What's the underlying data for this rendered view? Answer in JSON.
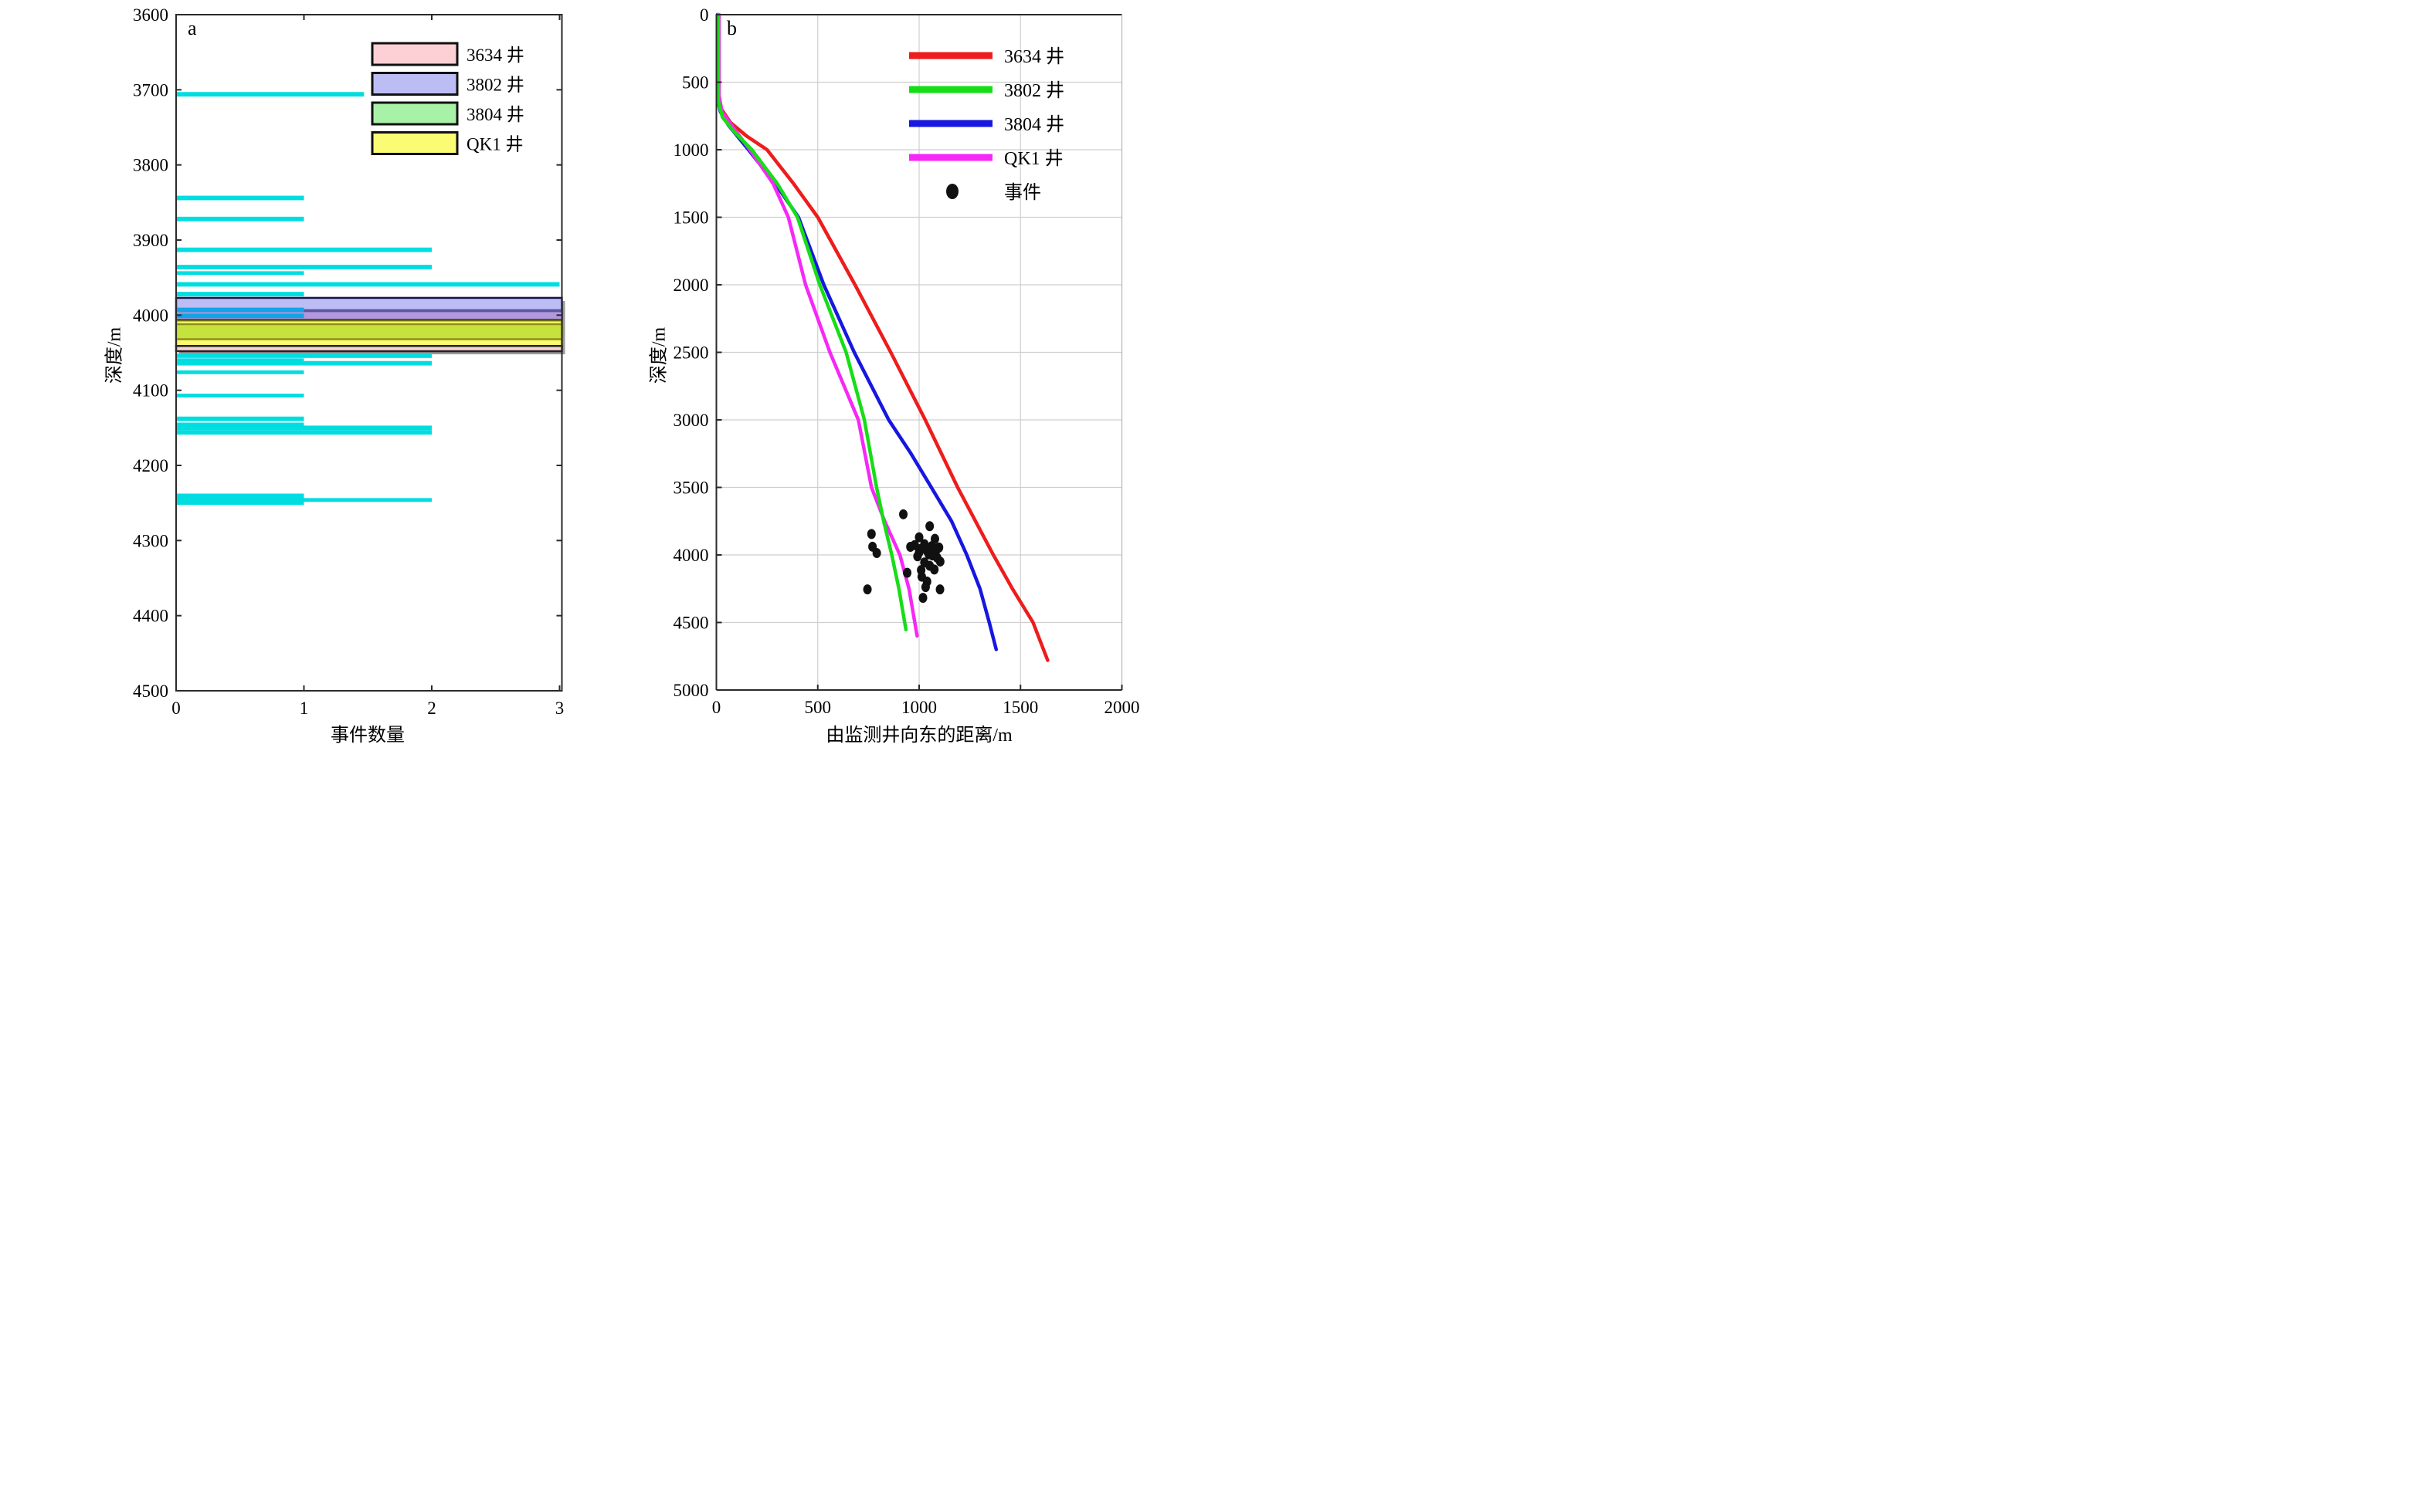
{
  "figure": {
    "panel_a_letter": "a",
    "panel_b_letter": "b"
  },
  "chart_data": [
    {
      "type": "bar",
      "orientation": "horizontal",
      "panel_label": "a",
      "xlabel": "事件数量",
      "ylabel": "深度/m",
      "x_range": [
        0,
        3
      ],
      "y_range": [
        3600,
        4500
      ],
      "x_ticks": [
        0,
        1,
        2,
        3
      ],
      "y_ticks": [
        3600,
        3700,
        3800,
        3900,
        4000,
        4100,
        4200,
        4300,
        4400,
        4500
      ],
      "grid": false,
      "colors": {
        "bar_cyan": "#00dde0",
        "bar_blue": "#14a3e6",
        "axis": "#2a2a2a",
        "band_shadow": "#9a9a9a"
      },
      "legend": [
        {
          "label": "3634 井",
          "fill": "#fcd0d4",
          "border": "#111111"
        },
        {
          "label": "3802 井",
          "fill": "#bdbdf5",
          "border": "#111111"
        },
        {
          "label": "3804 井",
          "fill": "#a8f2a8",
          "border": "#111111"
        },
        {
          "label": "QK1 井",
          "fill": "#fbfb74",
          "border": "#111111"
        }
      ],
      "bands": [
        {
          "well": "3802 井",
          "top": 3977,
          "bottom": 4006,
          "fill": "#bdbdf5",
          "border": "#15154a"
        },
        {
          "well": "3802 井 stripe",
          "top": 3992,
          "bottom": 3996,
          "fill": "#5c55a8",
          "border": null
        },
        {
          "well": "3802 井 lower",
          "top": 3996,
          "bottom": 4005,
          "fill": "#b399da",
          "border": null
        },
        {
          "well": "QK1 井",
          "top": 4007,
          "bottom": 4041,
          "fill": "#fafa6e",
          "border": "#6b6b10"
        },
        {
          "well": "3804 井 (overlap QK1)",
          "top": 4012,
          "bottom": 4032,
          "fill": "#c6e23c",
          "border": "#8e8e1c"
        },
        {
          "well": "3634 井",
          "top": 4041,
          "bottom": 4048,
          "fill": "#fcd0d4",
          "border": "#222222"
        }
      ],
      "bars": [
        {
          "depth": 3706,
          "height_m": 6,
          "value": 1.47,
          "color": "cyan"
        },
        {
          "depth": 3844,
          "height_m": 6,
          "value": 1,
          "color": "cyan"
        },
        {
          "depth": 3872,
          "height_m": 6,
          "value": 1,
          "color": "cyan"
        },
        {
          "depth": 3913,
          "height_m": 6,
          "value": 2,
          "color": "cyan"
        },
        {
          "depth": 3936,
          "height_m": 6,
          "value": 2,
          "color": "cyan"
        },
        {
          "depth": 3944,
          "height_m": 5,
          "value": 1,
          "color": "cyan"
        },
        {
          "depth": 3959,
          "height_m": 6,
          "value": 3,
          "color": "cyan"
        },
        {
          "depth": 3972,
          "height_m": 6,
          "value": 1,
          "color": "cyan"
        },
        {
          "depth": 3993,
          "height_m": 6,
          "value": 1,
          "color": "blue"
        },
        {
          "depth": 4001,
          "height_m": 6,
          "value": 1,
          "color": "blue"
        },
        {
          "depth": 4054,
          "height_m": 6,
          "value": 2,
          "color": "cyan"
        },
        {
          "depth": 4060,
          "height_m": 5,
          "value": 1,
          "color": "cyan"
        },
        {
          "depth": 4064,
          "height_m": 6,
          "value": 2,
          "color": "cyan"
        },
        {
          "depth": 4076,
          "height_m": 5,
          "value": 1,
          "color": "cyan"
        },
        {
          "depth": 4107,
          "height_m": 5,
          "value": 1,
          "color": "cyan"
        },
        {
          "depth": 4138,
          "height_m": 6,
          "value": 1,
          "color": "cyan"
        },
        {
          "depth": 4146,
          "height_m": 6,
          "value": 1,
          "color": "cyan"
        },
        {
          "depth": 4150,
          "height_m": 6,
          "value": 2,
          "color": "cyan"
        },
        {
          "depth": 4156,
          "height_m": 6,
          "value": 2,
          "color": "cyan"
        },
        {
          "depth": 4245,
          "height_m": 15,
          "value": 1,
          "color": "cyan"
        },
        {
          "depth": 4246,
          "height_m": 5,
          "value": 2,
          "color": "cyan"
        }
      ]
    },
    {
      "type": "line",
      "panel_label": "b",
      "xlabel": "由监测井向东的距离/m",
      "ylabel": "深度/m",
      "x_range": [
        0,
        2000
      ],
      "y_range": [
        0,
        5000
      ],
      "x_ticks": [
        0,
        500,
        1000,
        1500,
        2000
      ],
      "y_ticks": [
        0,
        500,
        1000,
        1500,
        2000,
        2500,
        3000,
        3500,
        4000,
        4500,
        5000
      ],
      "grid": true,
      "grid_color": "#cfcfcf",
      "axis_color": "#2a2a2a",
      "series": [
        {
          "name": "3634 井",
          "color": "#ee1c1c",
          "points": [
            [
              8,
              0
            ],
            [
              8,
              580
            ],
            [
              25,
              700
            ],
            [
              70,
              800
            ],
            [
              150,
              900
            ],
            [
              250,
              1000
            ],
            [
              380,
              1250
            ],
            [
              500,
              1500
            ],
            [
              684,
              2000
            ],
            [
              860,
              2500
            ],
            [
              1030,
              3000
            ],
            [
              1190,
              3500
            ],
            [
              1366,
              4000
            ],
            [
              1460,
              4250
            ],
            [
              1562,
              4500
            ],
            [
              1634,
              4780
            ]
          ]
        },
        {
          "name": "3802 井",
          "color": "#17dd17",
          "points": [
            [
              9,
              0
            ],
            [
              9,
              640
            ],
            [
              30,
              760
            ],
            [
              90,
              870
            ],
            [
              175,
              1000
            ],
            [
              300,
              1250
            ],
            [
              400,
              1500
            ],
            [
              510,
              2000
            ],
            [
              640,
              2500
            ],
            [
              730,
              3000
            ],
            [
              790,
              3500
            ],
            [
              825,
              3750
            ],
            [
              865,
              4000
            ],
            [
              900,
              4250
            ],
            [
              935,
              4553
            ]
          ]
        },
        {
          "name": "3804 井",
          "color": "#1717e0",
          "points": [
            [
              5,
              0
            ],
            [
              5,
              620
            ],
            [
              20,
              720
            ],
            [
              60,
              820
            ],
            [
              158,
              1000
            ],
            [
              290,
              1250
            ],
            [
              405,
              1500
            ],
            [
              530,
              2000
            ],
            [
              680,
              2500
            ],
            [
              850,
              3000
            ],
            [
              960,
              3250
            ],
            [
              1060,
              3500
            ],
            [
              1160,
              3750
            ],
            [
              1235,
              4000
            ],
            [
              1300,
              4250
            ],
            [
              1346,
              4500
            ],
            [
              1380,
              4700
            ]
          ]
        },
        {
          "name": "QK1 井",
          "color": "#f628f6",
          "points": [
            [
              13,
              0
            ],
            [
              13,
              600
            ],
            [
              28,
              720
            ],
            [
              80,
              830
            ],
            [
              165,
              1000
            ],
            [
              280,
              1250
            ],
            [
              355,
              1500
            ],
            [
              440,
              2000
            ],
            [
              560,
              2500
            ],
            [
              700,
              3000
            ],
            [
              765,
              3500
            ],
            [
              830,
              3750
            ],
            [
              905,
              4000
            ],
            [
              950,
              4250
            ],
            [
              990,
              4600
            ]
          ]
        }
      ],
      "events": {
        "label": "事件",
        "color": "#111111",
        "points": [
          [
            922,
            3699
          ],
          [
            1052,
            3787
          ],
          [
            765,
            3845
          ],
          [
            1000,
            3869
          ],
          [
            1078,
            3881
          ],
          [
            770,
            3939
          ],
          [
            978,
            3927
          ],
          [
            1026,
            3920
          ],
          [
            1063,
            3934
          ],
          [
            1098,
            3945
          ],
          [
            791,
            3986
          ],
          [
            1000,
            3981
          ],
          [
            1048,
            3996
          ],
          [
            1089,
            4021
          ],
          [
            1026,
            4056
          ],
          [
            1052,
            4080
          ],
          [
            1104,
            4049
          ],
          [
            941,
            4132
          ],
          [
            1013,
            4161
          ],
          [
            1039,
            4197
          ],
          [
            745,
            4255
          ],
          [
            1032,
            4238
          ],
          [
            1103,
            4255
          ],
          [
            1019,
            4318
          ],
          [
            1002,
            3957
          ],
          [
            1040,
            3972
          ],
          [
            1066,
            4004
          ],
          [
            1087,
            3959
          ],
          [
            992,
            4010
          ],
          [
            1010,
            4112
          ],
          [
            957,
            3940
          ],
          [
            1075,
            4108
          ]
        ]
      }
    }
  ]
}
